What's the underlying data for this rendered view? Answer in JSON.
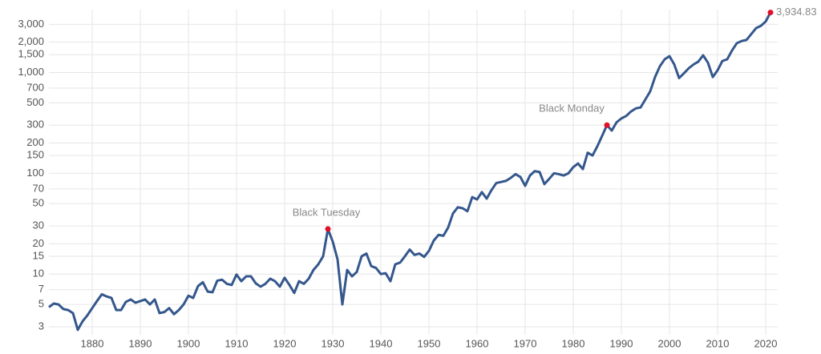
{
  "chart_data": {
    "type": "line",
    "log_y": true,
    "grid": true,
    "color": "#34578c",
    "marker_color": "#e0102a",
    "xlim": [
      1871,
      2022.5
    ],
    "ylim": [
      2.5,
      4200
    ],
    "xticks": [
      1880,
      1890,
      1900,
      1910,
      1920,
      1930,
      1940,
      1950,
      1960,
      1970,
      1980,
      1990,
      2000,
      2010,
      2020
    ],
    "yticks": [
      3,
      5,
      7,
      10,
      15,
      20,
      30,
      50,
      70,
      100,
      150,
      200,
      300,
      500,
      700,
      {
        "value": 1000,
        "label": "1,000"
      },
      {
        "value": 1500,
        "label": "1,500"
      },
      {
        "value": 2000,
        "label": "2,000"
      },
      {
        "value": 3000,
        "label": "3,000"
      }
    ],
    "x": [
      1871,
      1872,
      1873,
      1874,
      1875,
      1876,
      1877,
      1878,
      1879,
      1880,
      1881,
      1882,
      1883,
      1884,
      1885,
      1886,
      1887,
      1888,
      1889,
      1890,
      1891,
      1892,
      1893,
      1894,
      1895,
      1896,
      1897,
      1898,
      1899,
      1900,
      1901,
      1902,
      1903,
      1904,
      1905,
      1906,
      1907,
      1908,
      1909,
      1910,
      1911,
      1912,
      1913,
      1914,
      1915,
      1916,
      1917,
      1918,
      1919,
      1920,
      1921,
      1922,
      1923,
      1924,
      1925,
      1926,
      1927,
      1928,
      1929,
      1930,
      1931,
      1932,
      1933,
      1934,
      1935,
      1936,
      1937,
      1938,
      1939,
      1940,
      1941,
      1942,
      1943,
      1944,
      1945,
      1946,
      1947,
      1948,
      1949,
      1950,
      1951,
      1952,
      1953,
      1954,
      1955,
      1956,
      1957,
      1958,
      1959,
      1960,
      1961,
      1962,
      1963,
      1964,
      1965,
      1966,
      1967,
      1968,
      1969,
      1970,
      1971,
      1972,
      1973,
      1974,
      1975,
      1976,
      1977,
      1978,
      1979,
      1980,
      1981,
      1982,
      1983,
      1984,
      1985,
      1986,
      1987,
      1988,
      1989,
      1990,
      1991,
      1992,
      1993,
      1994,
      1995,
      1996,
      1997,
      1998,
      1999,
      2000,
      2001,
      2002,
      2003,
      2004,
      2005,
      2006,
      2007,
      2008,
      2009,
      2010,
      2011,
      2012,
      2013,
      2014,
      2015,
      2016,
      2017,
      2018,
      2019,
      2020,
      2021
    ],
    "values": [
      4.7,
      5.1,
      5.0,
      4.5,
      4.4,
      4.1,
      2.8,
      3.4,
      3.9,
      4.6,
      5.4,
      6.3,
      6.0,
      5.8,
      4.4,
      4.4,
      5.3,
      5.6,
      5.2,
      5.4,
      5.6,
      5.0,
      5.6,
      4.1,
      4.2,
      4.6,
      4.0,
      4.4,
      5.0,
      6.1,
      5.8,
      7.6,
      8.3,
      6.7,
      6.6,
      8.6,
      8.8,
      8.0,
      7.8,
      9.9,
      8.5,
      9.5,
      9.5,
      8.1,
      7.5,
      8.0,
      9.0,
      8.5,
      7.5,
      9.2,
      7.8,
      6.5,
      8.5,
      8.0,
      9.0,
      11.0,
      12.5,
      15.0,
      28,
      21,
      14,
      5,
      11,
      9.5,
      10.5,
      15,
      16,
      12,
      11.5,
      10,
      10.2,
      8.5,
      12.5,
      13,
      15,
      17.5,
      15.5,
      16,
      14.8,
      17,
      21.5,
      24.5,
      24,
      29,
      40,
      46,
      45,
      42,
      58,
      55,
      65,
      56,
      68,
      80,
      82,
      84,
      90,
      98,
      92,
      75,
      95,
      105,
      103,
      78,
      88,
      100,
      98,
      95,
      100,
      115,
      125,
      110,
      160,
      150,
      185,
      235,
      300,
      265,
      320,
      350,
      370,
      410,
      440,
      450,
      540,
      650,
      900,
      1150,
      1350,
      1450,
      1200,
      880,
      980,
      1100,
      1200,
      1280,
      1480,
      1250,
      900,
      1050,
      1300,
      1350,
      1650,
      1950,
      2050,
      2100,
      2400,
      2750,
      2900,
      3200,
      3934.83
    ],
    "annotations": [
      {
        "label": "Black Tuesday",
        "x": 1929,
        "y": 28
      },
      {
        "label": "Black Monday",
        "x": 1987,
        "y": 300
      },
      {
        "label": "3,934.83",
        "x": 2021,
        "y": 3934.83
      }
    ]
  }
}
